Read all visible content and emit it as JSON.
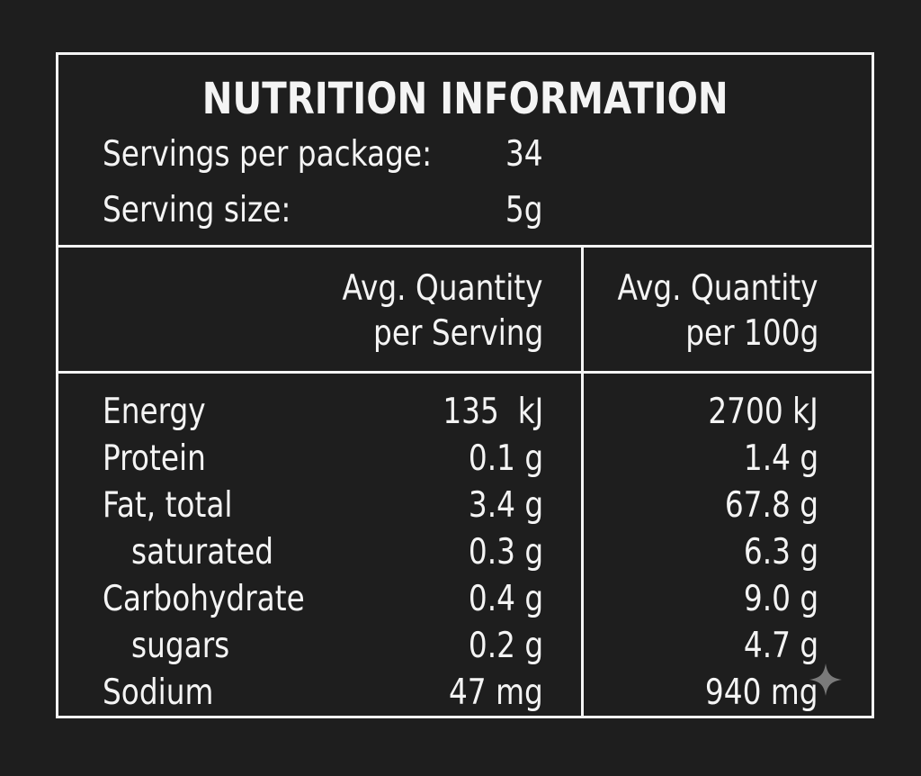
{
  "label": {
    "title": "NUTRITION INFORMATION",
    "servings_per_package_label": "Servings per package:",
    "servings_per_package_value": "34",
    "serving_size_label": "Serving size:",
    "serving_size_value": "5g",
    "column_per_serving_line1": "Avg. Quantity",
    "column_per_serving_line2": "per Serving",
    "column_per_100g_line1": "Avg. Quantity",
    "column_per_100g_line2": "per 100g",
    "rows": [
      {
        "name": "Energy",
        "per_serving": "135  kJ",
        "per_100g": "2700 kJ"
      },
      {
        "name": "Protein",
        "per_serving": "0.1 g",
        "per_100g": "1.4 g"
      },
      {
        "name": "Fat, total",
        "per_serving": "3.4 g",
        "per_100g": "67.8 g"
      },
      {
        "name": "saturated",
        "per_serving": "0.3 g",
        "per_100g": "6.3 g"
      },
      {
        "name": "Carbohydrate",
        "per_serving": "0.4 g",
        "per_100g": "9.0 g"
      },
      {
        "name": "sugars",
        "per_serving": "0.2 g",
        "per_100g": "4.7 g"
      },
      {
        "name": "Sodium",
        "per_serving": "47 mg",
        "per_100g": "940 mg"
      }
    ]
  },
  "colors": {
    "background": "#1e1e1e",
    "foreground": "#f4f4f4",
    "sparkle": "#7a7a7a"
  },
  "icons": {
    "corner_mark": "sparkle-icon"
  }
}
